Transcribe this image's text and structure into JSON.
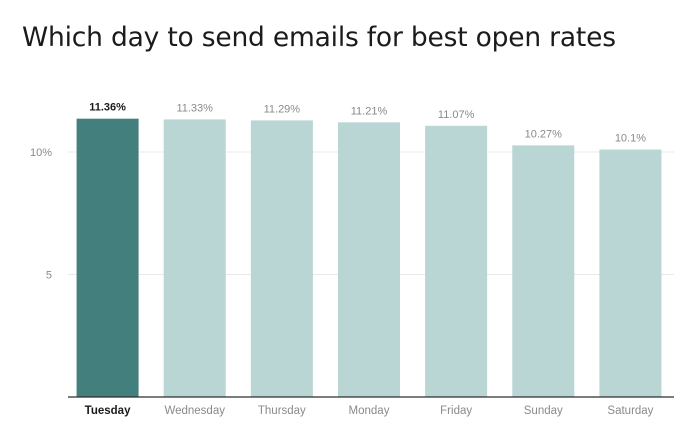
{
  "title": "Which day to send emails for best open rates",
  "colors": {
    "highlight_bar": "#43807D",
    "bar": "#B9D5D4",
    "grid": "#E9E9E9",
    "baseline": "#2E2E2E"
  },
  "chart_data": {
    "type": "bar",
    "title": "Which day to send emails for best open rates",
    "xlabel": "",
    "ylabel": "",
    "ylim": [
      0,
      12.22
    ],
    "grid": true,
    "categories": [
      "Tuesday",
      "Wednesday",
      "Thursday",
      "Monday",
      "Friday",
      "Sunday",
      "Saturday"
    ],
    "values": [
      11.36,
      11.33,
      11.29,
      11.21,
      11.07,
      10.27,
      10.1
    ],
    "data_labels": [
      "11.36%",
      "11.33%",
      "11.29%",
      "11.21%",
      "11.07%",
      "10.27%",
      "10.1%"
    ],
    "highlight_index": 0,
    "y_ticks": [
      {
        "value": 5,
        "label": "5"
      },
      {
        "value": 10,
        "label": "10%"
      }
    ]
  }
}
